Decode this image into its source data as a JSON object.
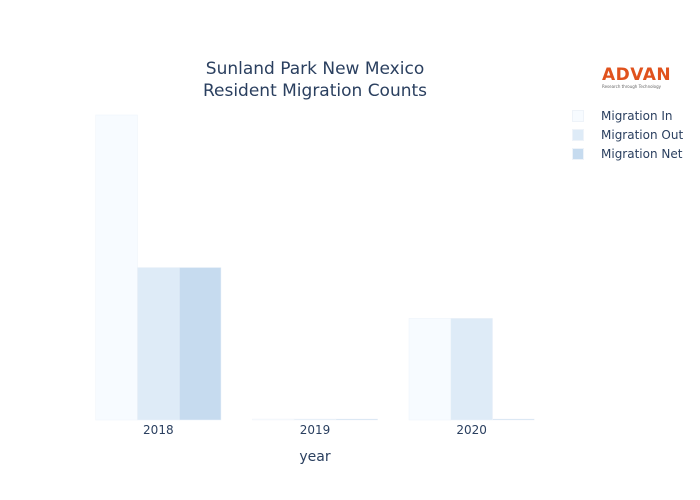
{
  "chart_data": {
    "type": "bar",
    "title": [
      "Sunland Park New Mexico",
      "Resident Migration Counts"
    ],
    "xlabel": "year",
    "ylabel": "",
    "categories": [
      "2018",
      "2019",
      "2020"
    ],
    "series": [
      {
        "name": "Migration In",
        "values": [
          60,
          0,
          20
        ],
        "color": "#f7fbff"
      },
      {
        "name": "Migration Out",
        "values": [
          30,
          0,
          20
        ],
        "color": "#deebf7"
      },
      {
        "name": "Migration Net",
        "values": [
          30,
          0,
          0
        ],
        "color": "#c6dbef"
      }
    ],
    "ylim": [
      0,
      60
    ],
    "grid": false,
    "legend_position": "top-right"
  },
  "logo": {
    "text": "ADVAN",
    "tagline": "Research through Technology"
  }
}
